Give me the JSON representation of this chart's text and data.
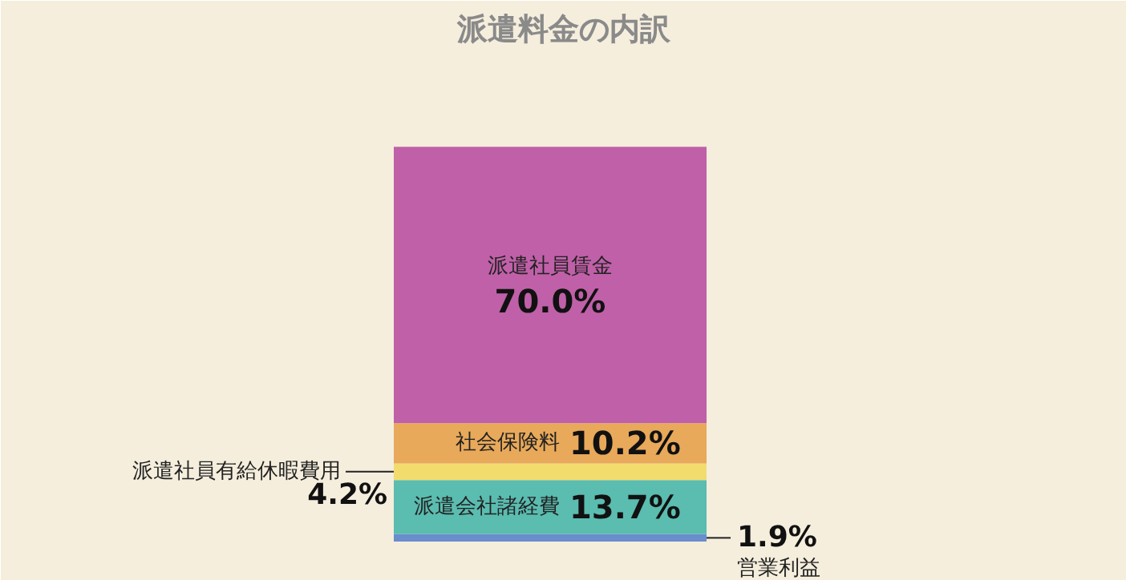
{
  "chart_data": {
    "type": "bar",
    "title": "派遣料金の内訳",
    "categories": [
      null
    ],
    "stacked": true,
    "series": [
      {
        "name": "営業利益",
        "color": "#6a8dcc",
        "values": [
          1.9
        ],
        "value_labels": [
          "1.9%"
        ]
      },
      {
        "name": "派遣会社諸経費",
        "color": "#5bbcb0",
        "values": [
          13.7
        ],
        "value_labels": [
          "13.7%"
        ]
      },
      {
        "name": "派遣社員有給休暇費用",
        "color": "#f2dc6e",
        "values": [
          4.2
        ],
        "value_labels": [
          "4.2%"
        ]
      },
      {
        "name": "社会保険料",
        "color": "#e8a95a",
        "values": [
          10.2
        ],
        "value_labels": [
          "10.2%"
        ]
      },
      {
        "name": "派遣社員賃金",
        "color": "#c060a8",
        "values": [
          70.0
        ],
        "value_labels": [
          "70.0%"
        ]
      }
    ]
  }
}
